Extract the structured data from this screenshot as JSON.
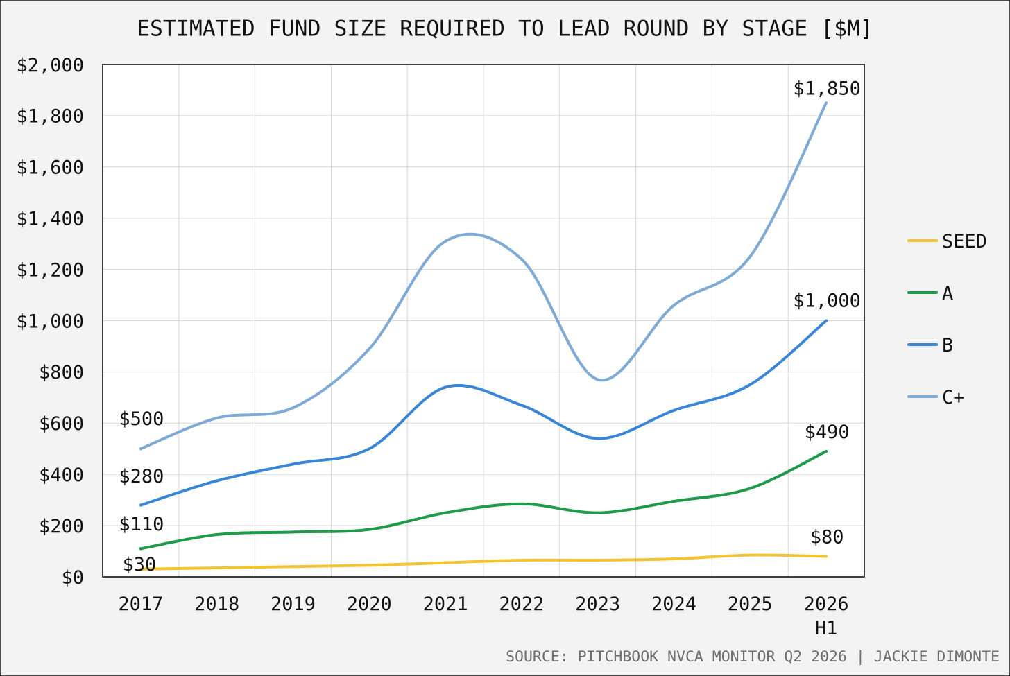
{
  "chart_data": {
    "type": "line",
    "smooth": true,
    "title": "ESTIMATED FUND SIZE REQUIRED TO LEAD ROUND BY STAGE [$M]",
    "categories": [
      "2017",
      "2018",
      "2019",
      "2020",
      "2021",
      "2022",
      "2023",
      "2024",
      "2025",
      "2026 H1"
    ],
    "ylim": [
      0,
      2000
    ],
    "yticks": [
      0,
      200,
      400,
      600,
      800,
      1000,
      1200,
      1400,
      1600,
      1800,
      2000
    ],
    "ytick_labels": [
      "$0",
      "$200",
      "$400",
      "$600",
      "$800",
      "$1,000",
      "$1,200",
      "$1,400",
      "$1,600",
      "$1,800",
      "$2,000"
    ],
    "grid": true,
    "legend": "right",
    "series": [
      {
        "name": "SEED",
        "color": "#f4c430",
        "values": [
          30,
          35,
          40,
          45,
          55,
          65,
          65,
          70,
          85,
          80
        ],
        "data_labels": [
          "$30",
          null,
          null,
          null,
          null,
          null,
          null,
          null,
          null,
          "$80"
        ]
      },
      {
        "name": "A",
        "color": "#1f9a4a",
        "values": [
          110,
          165,
          175,
          185,
          250,
          285,
          250,
          295,
          345,
          490
        ],
        "data_labels": [
          "$110",
          null,
          null,
          null,
          null,
          null,
          null,
          null,
          null,
          "$490"
        ]
      },
      {
        "name": "B",
        "color": "#3a86d6",
        "values": [
          280,
          375,
          440,
          500,
          740,
          670,
          540,
          650,
          750,
          1000
        ],
        "data_labels": [
          "$280",
          null,
          null,
          null,
          null,
          null,
          null,
          null,
          null,
          "$1,000"
        ]
      },
      {
        "name": "C+",
        "color": "#7faad6",
        "values": [
          500,
          620,
          660,
          890,
          1310,
          1240,
          770,
          1060,
          1250,
          1850
        ],
        "data_labels": [
          "$500",
          null,
          null,
          null,
          null,
          null,
          null,
          null,
          null,
          "$1,850"
        ]
      }
    ]
  },
  "source": "SOURCE: PITCHBOOK NVCA MONITOR Q2 2026 | JACKIE DIMONTE",
  "colors": {
    "background": "#f3f3f3",
    "plot_background": "#ffffff",
    "plot_border": "#000000",
    "grid": "#d5d5d5",
    "text": "#111111",
    "source_text": "#6e6e6e",
    "frame": "#4a4a4a"
  }
}
